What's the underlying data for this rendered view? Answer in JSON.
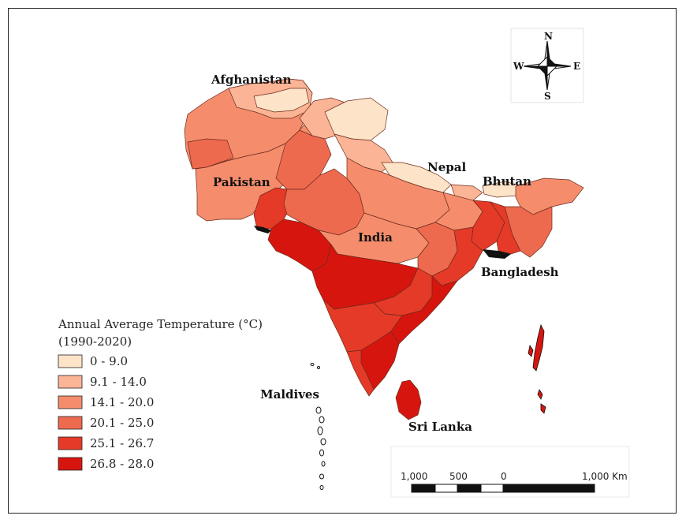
{
  "legend": {
    "title_line1": "Annual Average Temperature (°C)",
    "title_line2": "(1990-2020)",
    "classes": [
      {
        "label": "0 - 9.0",
        "color": "#fde3c7"
      },
      {
        "label": "9.1 - 14.0",
        "color": "#fbb596"
      },
      {
        "label": "14.1 - 20.0",
        "color": "#f58d6d"
      },
      {
        "label": "20.1 - 25.0",
        "color": "#ee6a4f"
      },
      {
        "label": "25.1 - 26.7",
        "color": "#e53a28"
      },
      {
        "label": "26.8 - 28.0",
        "color": "#d7150f"
      }
    ]
  },
  "countries": {
    "afghanistan": "Afghanistan",
    "pakistan": "Pakistan",
    "india": "India",
    "nepal": "Nepal",
    "bhutan": "Bhutan",
    "bangladesh": "Bangladesh",
    "maldives": "Maldives",
    "sri_lanka": "Sri Lanka"
  },
  "compass": {
    "n": "N",
    "s": "S",
    "e": "E",
    "w": "W"
  },
  "scale_bar": {
    "labels": [
      "1,000",
      "500",
      "0",
      "1,000 Km"
    ]
  }
}
